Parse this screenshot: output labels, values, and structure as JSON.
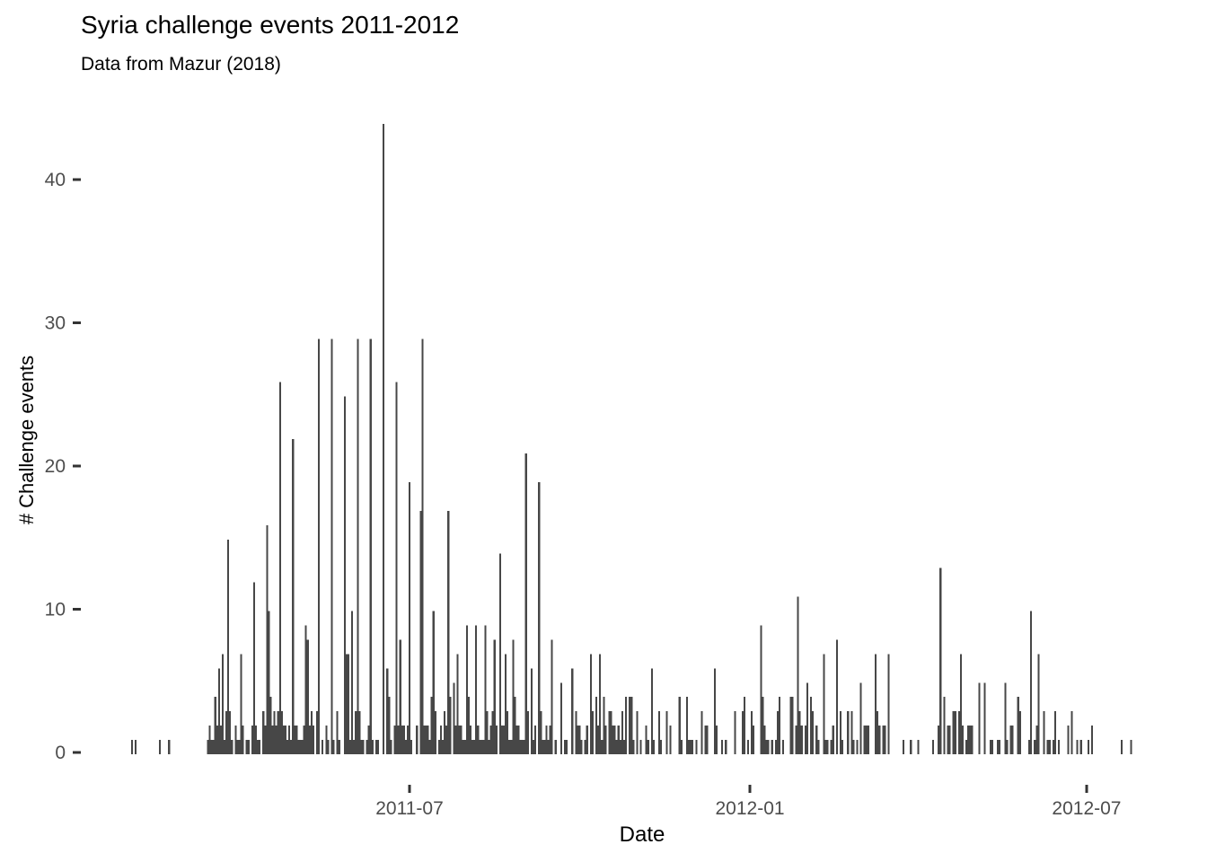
{
  "title": "Syria challenge events 2011-2012",
  "subtitle": "Data from Mazur (2018)",
  "x_axis": {
    "label": "Date"
  },
  "y_axis": {
    "label": "# Challenge events"
  },
  "colors": {
    "bar": "#474747",
    "tick_mark": "#333333",
    "tick_label": "#4d4d4d",
    "text": "#000000"
  },
  "chart_data": {
    "type": "bar",
    "title": "Syria challenge events 2011-2012",
    "subtitle": "Data from Mazur (2018)",
    "xlabel": "Date",
    "ylabel": "# Challenge events",
    "grid": false,
    "legend": "none",
    "ylim": [
      0,
      44
    ],
    "x_ticks": [
      {
        "label": "2011-07",
        "date": "2011-07-01"
      },
      {
        "label": "2012-01",
        "date": "2012-01-01"
      },
      {
        "label": "2012-07",
        "date": "2012-07-01"
      }
    ],
    "y_ticks": [
      {
        "label": "0",
        "value": 0
      },
      {
        "label": "10",
        "value": 10
      },
      {
        "label": "20",
        "value": 20
      },
      {
        "label": "30",
        "value": 30
      },
      {
        "label": "40",
        "value": 40
      }
    ],
    "points": [
      [
        "2011-02-01",
        1
      ],
      [
        "2011-02-03",
        1
      ],
      [
        "2011-02-16",
        1
      ],
      [
        "2011-02-21",
        1
      ],
      [
        "2011-03-14",
        1
      ],
      [
        "2011-03-15",
        2
      ],
      [
        "2011-03-16",
        1
      ],
      [
        "2011-03-17",
        1
      ],
      [
        "2011-03-18",
        4
      ],
      [
        "2011-03-19",
        2
      ],
      [
        "2011-03-20",
        6
      ],
      [
        "2011-03-21",
        2
      ],
      [
        "2011-03-22",
        7
      ],
      [
        "2011-03-23",
        1
      ],
      [
        "2011-03-24",
        3
      ],
      [
        "2011-03-25",
        15
      ],
      [
        "2011-03-26",
        3
      ],
      [
        "2011-03-27",
        1
      ],
      [
        "2011-03-29",
        2
      ],
      [
        "2011-03-30",
        1
      ],
      [
        "2011-03-31",
        1
      ],
      [
        "2011-04-01",
        7
      ],
      [
        "2011-04-02",
        2
      ],
      [
        "2011-04-04",
        1
      ],
      [
        "2011-04-05",
        1
      ],
      [
        "2011-04-07",
        2
      ],
      [
        "2011-04-08",
        12
      ],
      [
        "2011-04-09",
        2
      ],
      [
        "2011-04-10",
        1
      ],
      [
        "2011-04-11",
        1
      ],
      [
        "2011-04-13",
        3
      ],
      [
        "2011-04-14",
        2
      ],
      [
        "2011-04-15",
        16
      ],
      [
        "2011-04-16",
        10
      ],
      [
        "2011-04-17",
        4
      ],
      [
        "2011-04-18",
        2
      ],
      [
        "2011-04-19",
        3
      ],
      [
        "2011-04-20",
        2
      ],
      [
        "2011-04-21",
        3
      ],
      [
        "2011-04-22",
        26
      ],
      [
        "2011-04-23",
        3
      ],
      [
        "2011-04-24",
        2
      ],
      [
        "2011-04-25",
        2
      ],
      [
        "2011-04-26",
        1
      ],
      [
        "2011-04-27",
        2
      ],
      [
        "2011-04-28",
        1
      ],
      [
        "2011-04-29",
        22
      ],
      [
        "2011-04-30",
        2
      ],
      [
        "2011-05-01",
        2
      ],
      [
        "2011-05-02",
        1
      ],
      [
        "2011-05-03",
        1
      ],
      [
        "2011-05-04",
        1
      ],
      [
        "2011-05-05",
        2
      ],
      [
        "2011-05-06",
        9
      ],
      [
        "2011-05-07",
        8
      ],
      [
        "2011-05-08",
        2
      ],
      [
        "2011-05-09",
        3
      ],
      [
        "2011-05-10",
        2
      ],
      [
        "2011-05-12",
        3
      ],
      [
        "2011-05-13",
        29
      ],
      [
        "2011-05-15",
        1
      ],
      [
        "2011-05-17",
        2
      ],
      [
        "2011-05-18",
        1
      ],
      [
        "2011-05-20",
        29
      ],
      [
        "2011-05-21",
        1
      ],
      [
        "2011-05-23",
        3
      ],
      [
        "2011-05-24",
        1
      ],
      [
        "2011-05-27",
        25
      ],
      [
        "2011-05-28",
        7
      ],
      [
        "2011-05-29",
        7
      ],
      [
        "2011-05-30",
        1
      ],
      [
        "2011-05-31",
        10
      ],
      [
        "2011-06-01",
        1
      ],
      [
        "2011-06-02",
        3
      ],
      [
        "2011-06-03",
        29
      ],
      [
        "2011-06-04",
        3
      ],
      [
        "2011-06-05",
        1
      ],
      [
        "2011-06-06",
        1
      ],
      [
        "2011-06-08",
        1
      ],
      [
        "2011-06-09",
        2
      ],
      [
        "2011-06-10",
        29
      ],
      [
        "2011-06-11",
        1
      ],
      [
        "2011-06-13",
        1
      ],
      [
        "2011-06-14",
        1
      ],
      [
        "2011-06-17",
        44
      ],
      [
        "2011-06-19",
        6
      ],
      [
        "2011-06-20",
        4
      ],
      [
        "2011-06-21",
        1
      ],
      [
        "2011-06-23",
        2
      ],
      [
        "2011-06-24",
        26
      ],
      [
        "2011-06-25",
        2
      ],
      [
        "2011-06-26",
        8
      ],
      [
        "2011-06-27",
        2
      ],
      [
        "2011-06-28",
        2
      ],
      [
        "2011-06-29",
        1
      ],
      [
        "2011-06-30",
        2
      ],
      [
        "2011-07-01",
        19
      ],
      [
        "2011-07-02",
        1
      ],
      [
        "2011-07-05",
        2
      ],
      [
        "2011-07-07",
        17
      ],
      [
        "2011-07-08",
        29
      ],
      [
        "2011-07-09",
        2
      ],
      [
        "2011-07-10",
        2
      ],
      [
        "2011-07-11",
        2
      ],
      [
        "2011-07-12",
        1
      ],
      [
        "2011-07-13",
        4
      ],
      [
        "2011-07-14",
        10
      ],
      [
        "2011-07-15",
        3
      ],
      [
        "2011-07-17",
        1
      ],
      [
        "2011-07-18",
        2
      ],
      [
        "2011-07-19",
        1
      ],
      [
        "2011-07-20",
        3
      ],
      [
        "2011-07-21",
        2
      ],
      [
        "2011-07-22",
        17
      ],
      [
        "2011-07-23",
        4
      ],
      [
        "2011-07-25",
        5
      ],
      [
        "2011-07-26",
        2
      ],
      [
        "2011-07-27",
        7
      ],
      [
        "2011-07-28",
        2
      ],
      [
        "2011-07-29",
        2
      ],
      [
        "2011-07-30",
        1
      ],
      [
        "2011-07-31",
        1
      ],
      [
        "2011-08-01",
        9
      ],
      [
        "2011-08-02",
        4
      ],
      [
        "2011-08-03",
        2
      ],
      [
        "2011-08-04",
        1
      ],
      [
        "2011-08-05",
        1
      ],
      [
        "2011-08-06",
        9
      ],
      [
        "2011-08-07",
        2
      ],
      [
        "2011-08-08",
        1
      ],
      [
        "2011-08-09",
        1
      ],
      [
        "2011-08-10",
        1
      ],
      [
        "2011-08-11",
        9
      ],
      [
        "2011-08-12",
        3
      ],
      [
        "2011-08-13",
        1
      ],
      [
        "2011-08-14",
        2
      ],
      [
        "2011-08-15",
        3
      ],
      [
        "2011-08-16",
        8
      ],
      [
        "2011-08-17",
        2
      ],
      [
        "2011-08-19",
        14
      ],
      [
        "2011-08-20",
        2
      ],
      [
        "2011-08-21",
        2
      ],
      [
        "2011-08-22",
        7
      ],
      [
        "2011-08-23",
        3
      ],
      [
        "2011-08-24",
        1
      ],
      [
        "2011-08-25",
        1
      ],
      [
        "2011-08-26",
        8
      ],
      [
        "2011-08-27",
        4
      ],
      [
        "2011-08-28",
        2
      ],
      [
        "2011-08-29",
        2
      ],
      [
        "2011-08-30",
        1
      ],
      [
        "2011-08-31",
        1
      ],
      [
        "2011-09-01",
        1
      ],
      [
        "2011-09-02",
        21
      ],
      [
        "2011-09-03",
        3
      ],
      [
        "2011-09-05",
        6
      ],
      [
        "2011-09-06",
        1
      ],
      [
        "2011-09-07",
        2
      ],
      [
        "2011-09-09",
        19
      ],
      [
        "2011-09-10",
        3
      ],
      [
        "2011-09-11",
        1
      ],
      [
        "2011-09-12",
        1
      ],
      [
        "2011-09-13",
        2
      ],
      [
        "2011-09-14",
        1
      ],
      [
        "2011-09-15",
        2
      ],
      [
        "2011-09-16",
        8
      ],
      [
        "2011-09-18",
        1
      ],
      [
        "2011-09-21",
        5
      ],
      [
        "2011-09-23",
        1
      ],
      [
        "2011-09-24",
        1
      ],
      [
        "2011-09-27",
        6
      ],
      [
        "2011-09-29",
        3
      ],
      [
        "2011-09-30",
        2
      ],
      [
        "2011-10-01",
        2
      ],
      [
        "2011-10-02",
        1
      ],
      [
        "2011-10-04",
        1
      ],
      [
        "2011-10-05",
        2
      ],
      [
        "2011-10-07",
        7
      ],
      [
        "2011-10-08",
        3
      ],
      [
        "2011-10-10",
        4
      ],
      [
        "2011-10-11",
        2
      ],
      [
        "2011-10-12",
        7
      ],
      [
        "2011-10-13",
        1
      ],
      [
        "2011-10-14",
        4
      ],
      [
        "2011-10-15",
        2
      ],
      [
        "2011-10-17",
        3
      ],
      [
        "2011-10-18",
        3
      ],
      [
        "2011-10-19",
        2
      ],
      [
        "2011-10-20",
        2
      ],
      [
        "2011-10-21",
        1
      ],
      [
        "2011-10-22",
        2
      ],
      [
        "2011-10-23",
        1
      ],
      [
        "2011-10-24",
        3
      ],
      [
        "2011-10-25",
        1
      ],
      [
        "2011-10-26",
        4
      ],
      [
        "2011-10-28",
        4
      ],
      [
        "2011-10-29",
        4
      ],
      [
        "2011-10-30",
        1
      ],
      [
        "2011-11-01",
        3
      ],
      [
        "2011-11-03",
        1
      ],
      [
        "2011-11-06",
        2
      ],
      [
        "2011-11-07",
        1
      ],
      [
        "2011-11-09",
        6
      ],
      [
        "2011-11-10",
        1
      ],
      [
        "2011-11-13",
        3
      ],
      [
        "2011-11-14",
        1
      ],
      [
        "2011-11-17",
        3
      ],
      [
        "2011-11-19",
        2
      ],
      [
        "2011-11-24",
        4
      ],
      [
        "2011-11-25",
        1
      ],
      [
        "2011-11-28",
        4
      ],
      [
        "2011-11-29",
        1
      ],
      [
        "2011-11-30",
        1
      ],
      [
        "2011-12-01",
        1
      ],
      [
        "2011-12-03",
        1
      ],
      [
        "2011-12-06",
        3
      ],
      [
        "2011-12-08",
        2
      ],
      [
        "2011-12-09",
        2
      ],
      [
        "2011-12-13",
        6
      ],
      [
        "2011-12-14",
        2
      ],
      [
        "2011-12-17",
        1
      ],
      [
        "2011-12-19",
        1
      ],
      [
        "2011-12-24",
        3
      ],
      [
        "2011-12-28",
        3
      ],
      [
        "2011-12-29",
        4
      ],
      [
        "2011-12-31",
        1
      ],
      [
        "2012-01-02",
        3
      ],
      [
        "2012-01-03",
        2
      ],
      [
        "2012-01-07",
        9
      ],
      [
        "2012-01-08",
        4
      ],
      [
        "2012-01-09",
        2
      ],
      [
        "2012-01-10",
        1
      ],
      [
        "2012-01-11",
        1
      ],
      [
        "2012-01-13",
        1
      ],
      [
        "2012-01-15",
        1
      ],
      [
        "2012-01-16",
        3
      ],
      [
        "2012-01-17",
        4
      ],
      [
        "2012-01-19",
        1
      ],
      [
        "2012-01-23",
        4
      ],
      [
        "2012-01-24",
        4
      ],
      [
        "2012-01-26",
        2
      ],
      [
        "2012-01-27",
        11
      ],
      [
        "2012-01-28",
        3
      ],
      [
        "2012-01-29",
        2
      ],
      [
        "2012-01-31",
        2
      ],
      [
        "2012-02-01",
        5
      ],
      [
        "2012-02-03",
        4
      ],
      [
        "2012-02-04",
        3
      ],
      [
        "2012-02-06",
        2
      ],
      [
        "2012-02-07",
        1
      ],
      [
        "2012-02-10",
        7
      ],
      [
        "2012-02-11",
        1
      ],
      [
        "2012-02-12",
        1
      ],
      [
        "2012-02-14",
        1
      ],
      [
        "2012-02-15",
        2
      ],
      [
        "2012-02-17",
        8
      ],
      [
        "2012-02-19",
        3
      ],
      [
        "2012-02-20",
        1
      ],
      [
        "2012-02-23",
        3
      ],
      [
        "2012-02-25",
        3
      ],
      [
        "2012-02-26",
        1
      ],
      [
        "2012-02-28",
        1
      ],
      [
        "2012-03-01",
        5
      ],
      [
        "2012-03-03",
        2
      ],
      [
        "2012-03-04",
        2
      ],
      [
        "2012-03-05",
        2
      ],
      [
        "2012-03-09",
        7
      ],
      [
        "2012-03-10",
        3
      ],
      [
        "2012-03-11",
        2
      ],
      [
        "2012-03-13",
        2
      ],
      [
        "2012-03-14",
        2
      ],
      [
        "2012-03-16",
        7
      ],
      [
        "2012-03-24",
        1
      ],
      [
        "2012-03-28",
        1
      ],
      [
        "2012-04-01",
        1
      ],
      [
        "2012-04-09",
        1
      ],
      [
        "2012-04-12",
        2
      ],
      [
        "2012-04-13",
        13
      ],
      [
        "2012-04-15",
        4
      ],
      [
        "2012-04-17",
        2
      ],
      [
        "2012-04-18",
        2
      ],
      [
        "2012-04-20",
        3
      ],
      [
        "2012-04-21",
        3
      ],
      [
        "2012-04-23",
        3
      ],
      [
        "2012-04-24",
        7
      ],
      [
        "2012-04-25",
        2
      ],
      [
        "2012-04-27",
        1
      ],
      [
        "2012-04-28",
        2
      ],
      [
        "2012-04-29",
        2
      ],
      [
        "2012-04-30",
        2
      ],
      [
        "2012-05-04",
        5
      ],
      [
        "2012-05-07",
        5
      ],
      [
        "2012-05-10",
        1
      ],
      [
        "2012-05-11",
        1
      ],
      [
        "2012-05-14",
        1
      ],
      [
        "2012-05-15",
        1
      ],
      [
        "2012-05-18",
        5
      ],
      [
        "2012-05-19",
        1
      ],
      [
        "2012-05-21",
        2
      ],
      [
        "2012-05-22",
        2
      ],
      [
        "2012-05-25",
        4
      ],
      [
        "2012-05-26",
        3
      ],
      [
        "2012-05-31",
        1
      ],
      [
        "2012-06-01",
        10
      ],
      [
        "2012-06-03",
        1
      ],
      [
        "2012-06-04",
        2
      ],
      [
        "2012-06-05",
        7
      ],
      [
        "2012-06-08",
        3
      ],
      [
        "2012-06-10",
        1
      ],
      [
        "2012-06-11",
        1
      ],
      [
        "2012-06-13",
        1
      ],
      [
        "2012-06-14",
        3
      ],
      [
        "2012-06-16",
        1
      ],
      [
        "2012-06-21",
        2
      ],
      [
        "2012-06-23",
        3
      ],
      [
        "2012-06-26",
        1
      ],
      [
        "2012-06-28",
        1
      ],
      [
        "2012-07-02",
        1
      ],
      [
        "2012-07-04",
        2
      ],
      [
        "2012-07-20",
        1
      ],
      [
        "2012-07-25",
        1
      ]
    ]
  }
}
